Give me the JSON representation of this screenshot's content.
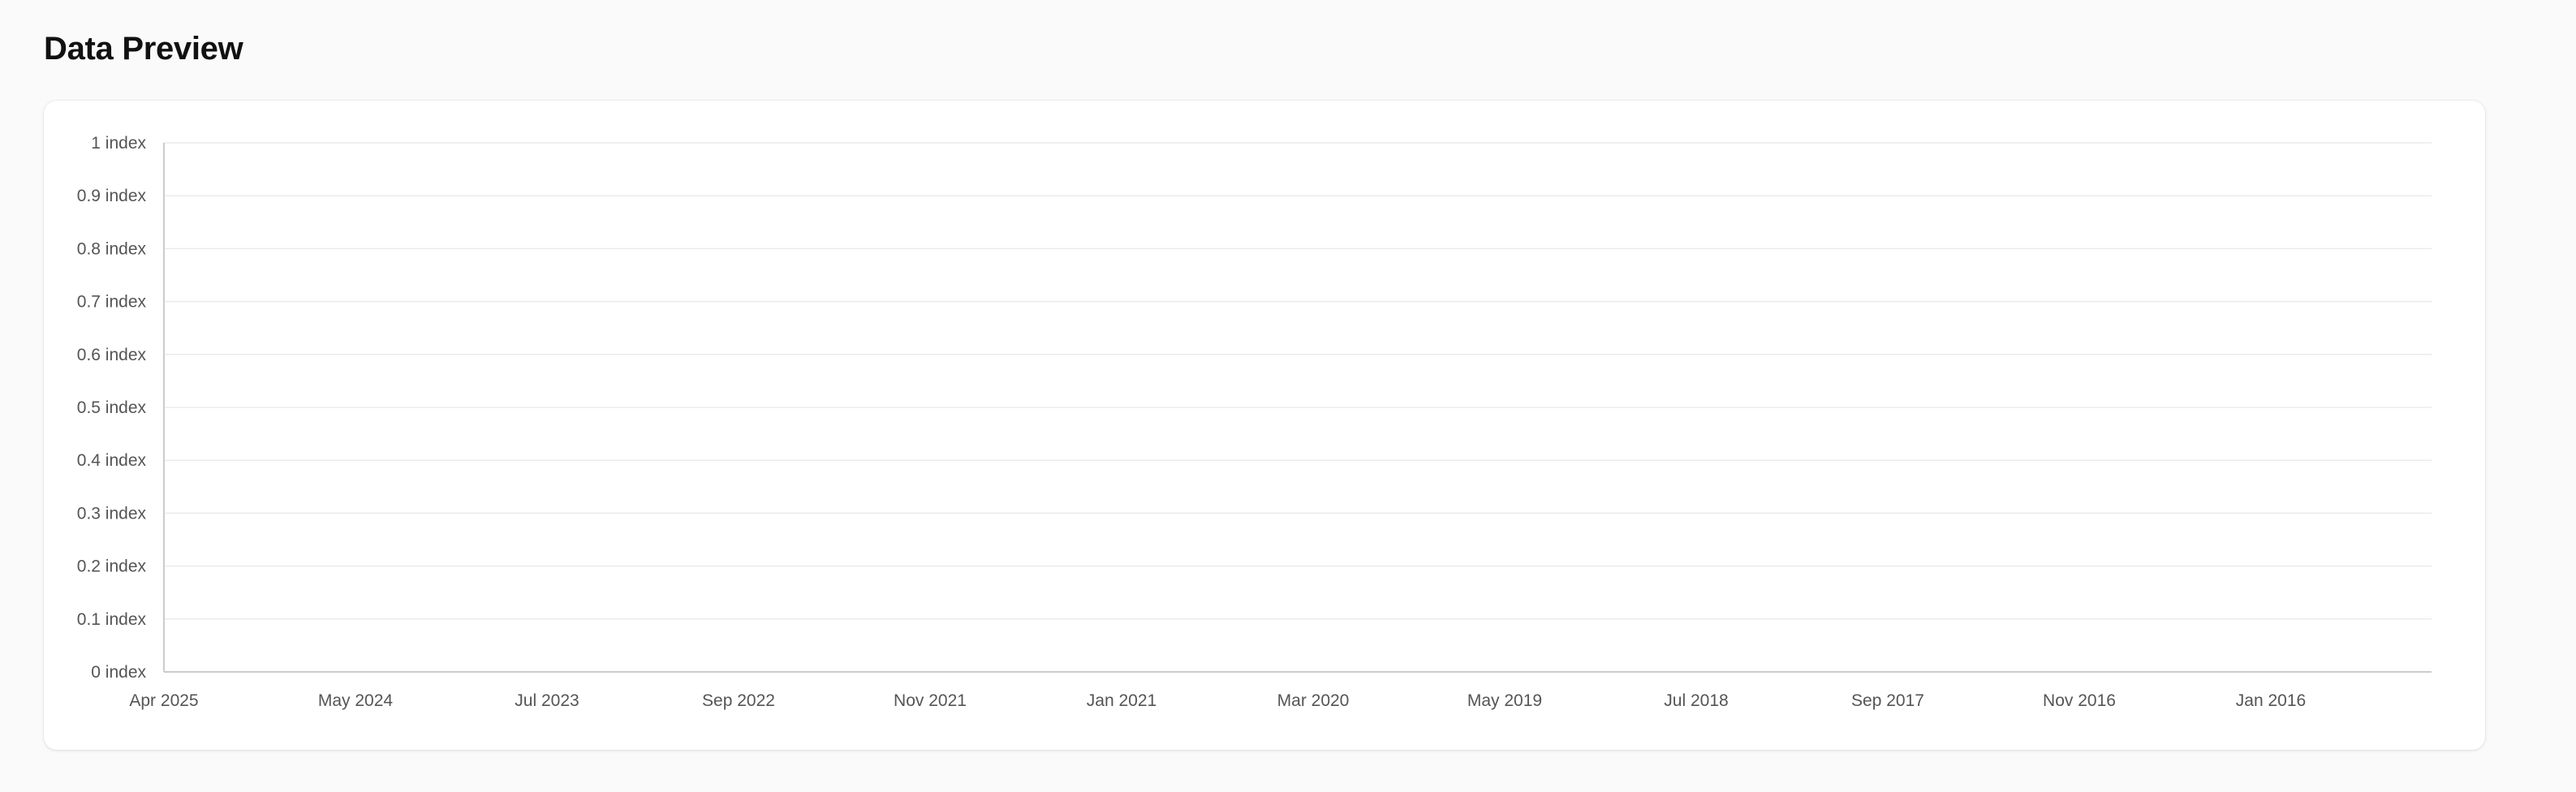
{
  "page": {
    "title": "Data Preview"
  },
  "chart_data": {
    "type": "line",
    "series": [],
    "x_axis": {
      "ticks": [
        "Apr 2025",
        "May 2024",
        "Jul 2023",
        "Sep 2022",
        "Nov 2021",
        "Jan 2021",
        "Mar 2020",
        "May 2019",
        "Jul 2018",
        "Sep 2017",
        "Nov 2016",
        "Jan 2016"
      ]
    },
    "y_axis": {
      "ylim": [
        0,
        1
      ],
      "unit": "index",
      "ticks": [
        "0 index",
        "0.1 index",
        "0.2 index",
        "0.3 index",
        "0.4 index",
        "0.5 index",
        "0.6 index",
        "0.7 index",
        "0.8 index",
        "0.9 index",
        "1 index"
      ]
    },
    "grid": true,
    "colors": {
      "grid": "#ebebeb",
      "axis": "#cccccc",
      "tick_text": "#555555"
    }
  }
}
